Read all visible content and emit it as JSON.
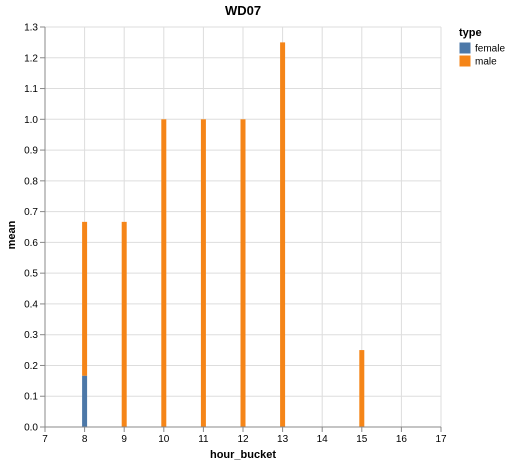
{
  "chart_data": {
    "type": "bar",
    "stacked": true,
    "title": "WD07",
    "xlabel": "hour_bucket",
    "ylabel": "mean",
    "xlim": [
      7,
      17
    ],
    "ylim": [
      0,
      1.3
    ],
    "x_ticks": [
      "7",
      "8",
      "9",
      "10",
      "11",
      "12",
      "13",
      "14",
      "15",
      "16",
      "17"
    ],
    "y_ticks": [
      "0.0",
      "0.1",
      "0.2",
      "0.3",
      "0.4",
      "0.5",
      "0.6",
      "0.7",
      "0.8",
      "0.9",
      "1.0",
      "1.1",
      "1.2",
      "1.3"
    ],
    "grid": true,
    "legend": {
      "title": "type",
      "position": "top-right"
    },
    "series": [
      {
        "name": "female",
        "color": "#4c78a8",
        "points": [
          {
            "x": 8,
            "y": 0.1667
          }
        ]
      },
      {
        "name": "male",
        "color": "#f58518",
        "points": [
          {
            "x": 8,
            "y": 0.5
          },
          {
            "x": 9,
            "y": 0.6667
          },
          {
            "x": 10,
            "y": 1.0
          },
          {
            "x": 11,
            "y": 1.0
          },
          {
            "x": 12,
            "y": 1.0
          },
          {
            "x": 13,
            "y": 1.25
          },
          {
            "x": 15,
            "y": 0.25
          }
        ]
      }
    ]
  }
}
